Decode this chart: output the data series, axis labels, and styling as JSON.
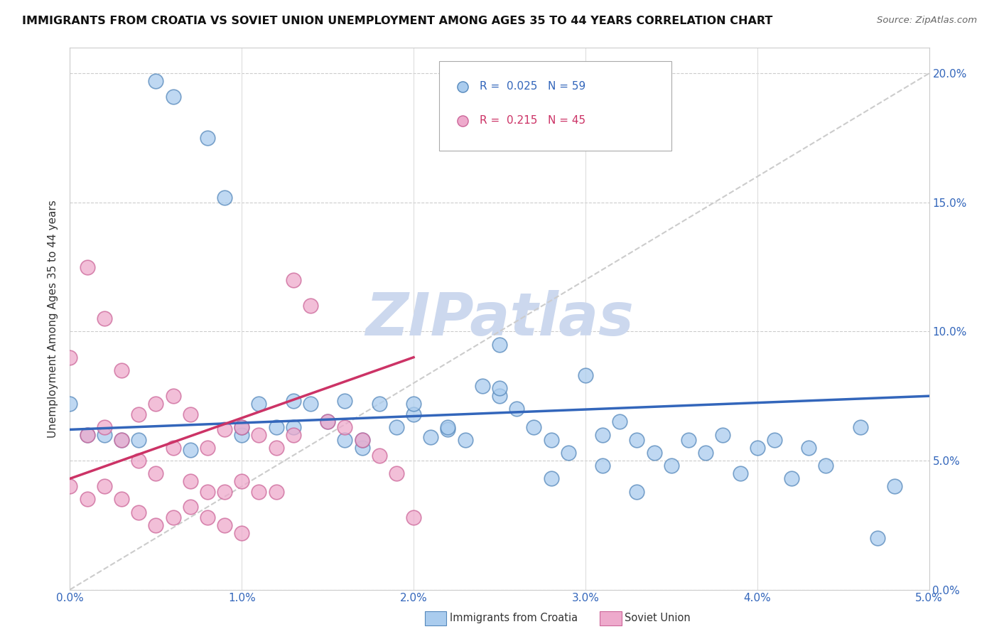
{
  "title": "IMMIGRANTS FROM CROATIA VS SOVIET UNION UNEMPLOYMENT AMONG AGES 35 TO 44 YEARS CORRELATION CHART",
  "source": "Source: ZipAtlas.com",
  "ylabel": "Unemployment Among Ages 35 to 44 years",
  "xlim": [
    0.0,
    0.05
  ],
  "ylim": [
    0.0,
    0.21
  ],
  "x_ticks": [
    0.0,
    0.01,
    0.02,
    0.03,
    0.04,
    0.05
  ],
  "y_ticks": [
    0.0,
    0.05,
    0.1,
    0.15,
    0.2
  ],
  "croatia_R": 0.025,
  "croatia_N": 59,
  "soviet_R": 0.215,
  "soviet_N": 45,
  "croatia_color": "#aaccee",
  "soviet_color": "#eeaacc",
  "croatia_edge_color": "#5588bb",
  "soviet_edge_color": "#cc6699",
  "croatia_line_color": "#3366bb",
  "soviet_line_color": "#cc3366",
  "dash_line_color": "#cccccc",
  "watermark_color": "#ccd8ee",
  "croatia_x": [
    0.002,
    0.004,
    0.005,
    0.006,
    0.007,
    0.008,
    0.009,
    0.01,
    0.011,
    0.012,
    0.013,
    0.014,
    0.015,
    0.016,
    0.017,
    0.018,
    0.019,
    0.02,
    0.021,
    0.022,
    0.023,
    0.024,
    0.025,
    0.026,
    0.027,
    0.028,
    0.03,
    0.031,
    0.032,
    0.033,
    0.034,
    0.035,
    0.036,
    0.037,
    0.038,
    0.039,
    0.04,
    0.041,
    0.043,
    0.044,
    0.046,
    0.048,
    0.003,
    0.001,
    0.0,
    0.029,
    0.042,
    0.01,
    0.013,
    0.016,
    0.02,
    0.028,
    0.033,
    0.017,
    0.022,
    0.025,
    0.031,
    0.047,
    0.025
  ],
  "croatia_y": [
    0.06,
    0.058,
    0.197,
    0.191,
    0.054,
    0.175,
    0.152,
    0.06,
    0.072,
    0.063,
    0.073,
    0.072,
    0.065,
    0.058,
    0.055,
    0.072,
    0.063,
    0.068,
    0.059,
    0.062,
    0.058,
    0.079,
    0.075,
    0.07,
    0.063,
    0.058,
    0.083,
    0.06,
    0.065,
    0.058,
    0.053,
    0.048,
    0.058,
    0.053,
    0.06,
    0.045,
    0.055,
    0.058,
    0.055,
    0.048,
    0.063,
    0.04,
    0.058,
    0.06,
    0.072,
    0.053,
    0.043,
    0.063,
    0.063,
    0.073,
    0.072,
    0.043,
    0.038,
    0.058,
    0.063,
    0.078,
    0.048,
    0.02,
    0.095
  ],
  "soviet_x": [
    0.0,
    0.001,
    0.001,
    0.002,
    0.002,
    0.003,
    0.003,
    0.004,
    0.004,
    0.005,
    0.005,
    0.006,
    0.006,
    0.007,
    0.007,
    0.008,
    0.008,
    0.009,
    0.009,
    0.01,
    0.01,
    0.011,
    0.011,
    0.012,
    0.012,
    0.013,
    0.013,
    0.014,
    0.015,
    0.016,
    0.017,
    0.018,
    0.019,
    0.02,
    0.002,
    0.003,
    0.004,
    0.005,
    0.006,
    0.007,
    0.008,
    0.009,
    0.01,
    0.001,
    0.0
  ],
  "soviet_y": [
    0.09,
    0.125,
    0.06,
    0.105,
    0.063,
    0.085,
    0.058,
    0.068,
    0.05,
    0.072,
    0.045,
    0.075,
    0.055,
    0.068,
    0.042,
    0.055,
    0.038,
    0.062,
    0.038,
    0.063,
    0.042,
    0.06,
    0.038,
    0.055,
    0.038,
    0.12,
    0.06,
    0.11,
    0.065,
    0.063,
    0.058,
    0.052,
    0.045,
    0.028,
    0.04,
    0.035,
    0.03,
    0.025,
    0.028,
    0.032,
    0.028,
    0.025,
    0.022,
    0.035,
    0.04
  ]
}
